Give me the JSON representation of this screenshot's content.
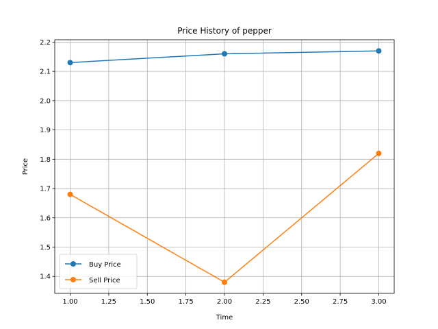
{
  "chart_data": {
    "type": "line",
    "title": "Price History of pepper",
    "xlabel": "Time",
    "ylabel": "Price",
    "xlim": [
      0.9,
      3.1
    ],
    "ylim": [
      1.342,
      2.208
    ],
    "xticks": [
      1.0,
      1.25,
      1.5,
      1.75,
      2.0,
      2.25,
      2.5,
      2.75,
      3.0
    ],
    "xtick_labels": [
      "1.00",
      "1.25",
      "1.50",
      "1.75",
      "2.00",
      "2.25",
      "2.50",
      "2.75",
      "3.00"
    ],
    "yticks": [
      1.4,
      1.5,
      1.6,
      1.7,
      1.8,
      1.9,
      2.0,
      2.1,
      2.2
    ],
    "ytick_labels": [
      "1.4",
      "1.5",
      "1.6",
      "1.7",
      "1.8",
      "1.9",
      "2.0",
      "2.1",
      "2.2"
    ],
    "grid": true,
    "legend_position": "lower-left",
    "x": [
      1,
      2,
      3
    ],
    "series": [
      {
        "name": "Buy Price",
        "color": "#1f77b4",
        "marker": "circle",
        "values": [
          2.13,
          2.16,
          2.17
        ]
      },
      {
        "name": "Sell Price",
        "color": "#ff7f0e",
        "marker": "circle",
        "values": [
          1.68,
          1.38,
          1.82
        ]
      }
    ]
  }
}
